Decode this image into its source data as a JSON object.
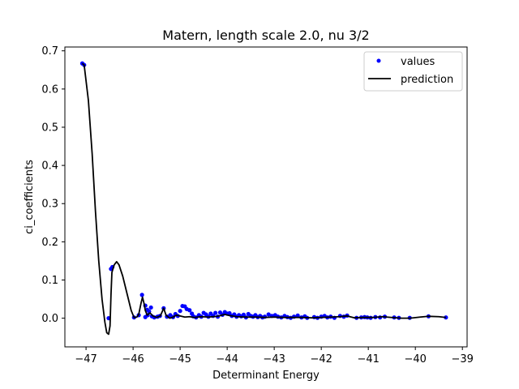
{
  "chart_data": {
    "type": "scatter",
    "title": "Matern, length scale 2.0, nu 3/2",
    "xlabel": "Determinant Energy",
    "ylabel": "ci_coefficients",
    "xlim": [
      -47.45,
      -38.9
    ],
    "ylim": [
      -0.075,
      0.71
    ],
    "xticks": [
      -47,
      -46,
      -45,
      -44,
      -43,
      -42,
      -41,
      -40,
      -39
    ],
    "xtick_labels": [
      "−47",
      "−46",
      "−45",
      "−44",
      "−43",
      "−42",
      "−41",
      "−40",
      "−39"
    ],
    "yticks": [
      0.0,
      0.1,
      0.2,
      0.3,
      0.4,
      0.5,
      0.6,
      0.7
    ],
    "ytick_labels": [
      "0.0",
      "0.1",
      "0.2",
      "0.3",
      "0.4",
      "0.5",
      "0.6",
      "0.7"
    ],
    "legend_position": "top-right",
    "grid": false,
    "series": [
      {
        "name": "values",
        "kind": "markers",
        "color": "#0000ff",
        "points": [
          [
            -47.08,
            0.667
          ],
          [
            -47.04,
            0.663
          ],
          [
            -46.52,
            0.0
          ],
          [
            -46.47,
            0.129
          ],
          [
            -46.44,
            0.134
          ],
          [
            -45.98,
            0.002
          ],
          [
            -45.88,
            0.008
          ],
          [
            -45.81,
            0.061
          ],
          [
            -45.74,
            0.033
          ],
          [
            -45.7,
            0.022
          ],
          [
            -45.66,
            0.018
          ],
          [
            -45.62,
            0.028
          ],
          [
            -45.74,
            0.003
          ],
          [
            -45.69,
            0.008
          ],
          [
            -45.6,
            0.005
          ],
          [
            -45.55,
            0.002
          ],
          [
            -45.48,
            0.004
          ],
          [
            -45.43,
            0.006
          ],
          [
            -45.35,
            0.026
          ],
          [
            -45.28,
            0.004
          ],
          [
            -45.21,
            0.008
          ],
          [
            -45.15,
            0.003
          ],
          [
            -45.1,
            0.011
          ],
          [
            -45.05,
            0.006
          ],
          [
            -45.0,
            0.019
          ],
          [
            -44.95,
            0.032
          ],
          [
            -44.9,
            0.031
          ],
          [
            -44.86,
            0.024
          ],
          [
            -44.8,
            0.021
          ],
          [
            -44.75,
            0.012
          ],
          [
            -44.72,
            0.005
          ],
          [
            -44.66,
            0.002
          ],
          [
            -44.6,
            0.008
          ],
          [
            -44.55,
            0.004
          ],
          [
            -44.5,
            0.014
          ],
          [
            -44.45,
            0.01
          ],
          [
            -44.4,
            0.004
          ],
          [
            -44.35,
            0.012
          ],
          [
            -44.3,
            0.006
          ],
          [
            -44.25,
            0.014
          ],
          [
            -44.2,
            0.004
          ],
          [
            -44.15,
            0.015
          ],
          [
            -44.1,
            0.009
          ],
          [
            -44.05,
            0.016
          ],
          [
            -44.0,
            0.012
          ],
          [
            -43.95,
            0.013
          ],
          [
            -43.9,
            0.006
          ],
          [
            -43.85,
            0.01
          ],
          [
            -43.8,
            0.004
          ],
          [
            -43.75,
            0.008
          ],
          [
            -43.7,
            0.005
          ],
          [
            -43.65,
            0.009
          ],
          [
            -43.6,
            0.002
          ],
          [
            -43.55,
            0.011
          ],
          [
            -43.5,
            0.006
          ],
          [
            -43.45,
            0.004
          ],
          [
            -43.4,
            0.008
          ],
          [
            -43.35,
            0.003
          ],
          [
            -43.3,
            0.006
          ],
          [
            -43.25,
            0.002
          ],
          [
            -43.2,
            0.004
          ],
          [
            -43.12,
            0.01
          ],
          [
            -43.05,
            0.006
          ],
          [
            -42.98,
            0.008
          ],
          [
            -42.92,
            0.004
          ],
          [
            -42.85,
            0.002
          ],
          [
            -42.78,
            0.006
          ],
          [
            -42.72,
            0.003
          ],
          [
            -42.65,
            0.001
          ],
          [
            -42.58,
            0.004
          ],
          [
            -42.5,
            0.007
          ],
          [
            -42.42,
            0.002
          ],
          [
            -42.35,
            0.005
          ],
          [
            -42.3,
            0.001
          ],
          [
            -42.15,
            0.003
          ],
          [
            -42.08,
            0.001
          ],
          [
            -42.0,
            0.004
          ],
          [
            -41.93,
            0.006
          ],
          [
            -41.87,
            0.002
          ],
          [
            -41.8,
            0.004
          ],
          [
            -41.72,
            0.001
          ],
          [
            -41.6,
            0.006
          ],
          [
            -41.52,
            0.004
          ],
          [
            -41.45,
            0.007
          ],
          [
            -41.25,
            0.001
          ],
          [
            -41.15,
            0.002
          ],
          [
            -41.08,
            0.003
          ],
          [
            -41.02,
            0.002
          ],
          [
            -40.95,
            0.001
          ],
          [
            -40.85,
            0.003
          ],
          [
            -40.75,
            0.002
          ],
          [
            -40.65,
            0.004
          ],
          [
            -40.45,
            0.002
          ],
          [
            -40.35,
            0.001
          ],
          [
            -40.12,
            0.001
          ],
          [
            -39.72,
            0.005
          ],
          [
            -39.35,
            0.002
          ]
        ]
      },
      {
        "name": "prediction",
        "kind": "line",
        "color": "#000000",
        "points": [
          [
            -47.08,
            0.667
          ],
          [
            -47.04,
            0.663
          ],
          [
            -46.95,
            0.57
          ],
          [
            -46.87,
            0.43
          ],
          [
            -46.8,
            0.28
          ],
          [
            -46.73,
            0.15
          ],
          [
            -46.66,
            0.05
          ],
          [
            -46.6,
            -0.01
          ],
          [
            -46.56,
            -0.038
          ],
          [
            -46.52,
            -0.042
          ],
          [
            -46.49,
            -0.02
          ],
          [
            -46.47,
            0.06
          ],
          [
            -46.45,
            0.12
          ],
          [
            -46.4,
            0.14
          ],
          [
            -46.35,
            0.148
          ],
          [
            -46.3,
            0.14
          ],
          [
            -46.22,
            0.11
          ],
          [
            -46.12,
            0.06
          ],
          [
            -46.04,
            0.02
          ],
          [
            -45.98,
            0.002
          ],
          [
            -45.92,
            0.003
          ],
          [
            -45.88,
            0.01
          ],
          [
            -45.83,
            0.04
          ],
          [
            -45.8,
            0.055
          ],
          [
            -45.77,
            0.04
          ],
          [
            -45.74,
            0.02
          ],
          [
            -45.7,
            0.008
          ],
          [
            -45.64,
            0.014
          ],
          [
            -45.58,
            0.006
          ],
          [
            -45.5,
            0.002
          ],
          [
            -45.42,
            0.006
          ],
          [
            -45.35,
            0.026
          ],
          [
            -45.3,
            0.008
          ],
          [
            -45.22,
            0.0
          ],
          [
            -45.15,
            0.003
          ],
          [
            -45.08,
            0.008
          ],
          [
            -45.0,
            0.006
          ],
          [
            -44.9,
            0.003
          ],
          [
            -44.8,
            0.004
          ],
          [
            -44.7,
            0.002
          ],
          [
            -44.55,
            0.004
          ],
          [
            -44.4,
            0.003
          ],
          [
            -44.2,
            0.005
          ],
          [
            -44.05,
            0.01
          ],
          [
            -43.95,
            0.007
          ],
          [
            -43.8,
            0.004
          ],
          [
            -43.6,
            0.003
          ],
          [
            -43.4,
            0.003
          ],
          [
            -43.2,
            0.002
          ],
          [
            -43.0,
            0.003
          ],
          [
            -42.8,
            0.002
          ],
          [
            -42.6,
            0.002
          ],
          [
            -42.4,
            0.002
          ],
          [
            -42.2,
            0.001
          ],
          [
            -42.0,
            0.002
          ],
          [
            -41.8,
            0.003
          ],
          [
            -41.6,
            0.004
          ],
          [
            -41.45,
            0.006
          ],
          [
            -41.3,
            0.001
          ],
          [
            -41.1,
            0.002
          ],
          [
            -40.9,
            0.002
          ],
          [
            -40.7,
            0.004
          ],
          [
            -40.5,
            0.002
          ],
          [
            -40.3,
            0.0
          ],
          [
            -40.12,
            0.0
          ],
          [
            -39.9,
            0.003
          ],
          [
            -39.72,
            0.005
          ],
          [
            -39.5,
            0.004
          ],
          [
            -39.35,
            0.002
          ]
        ]
      }
    ]
  }
}
